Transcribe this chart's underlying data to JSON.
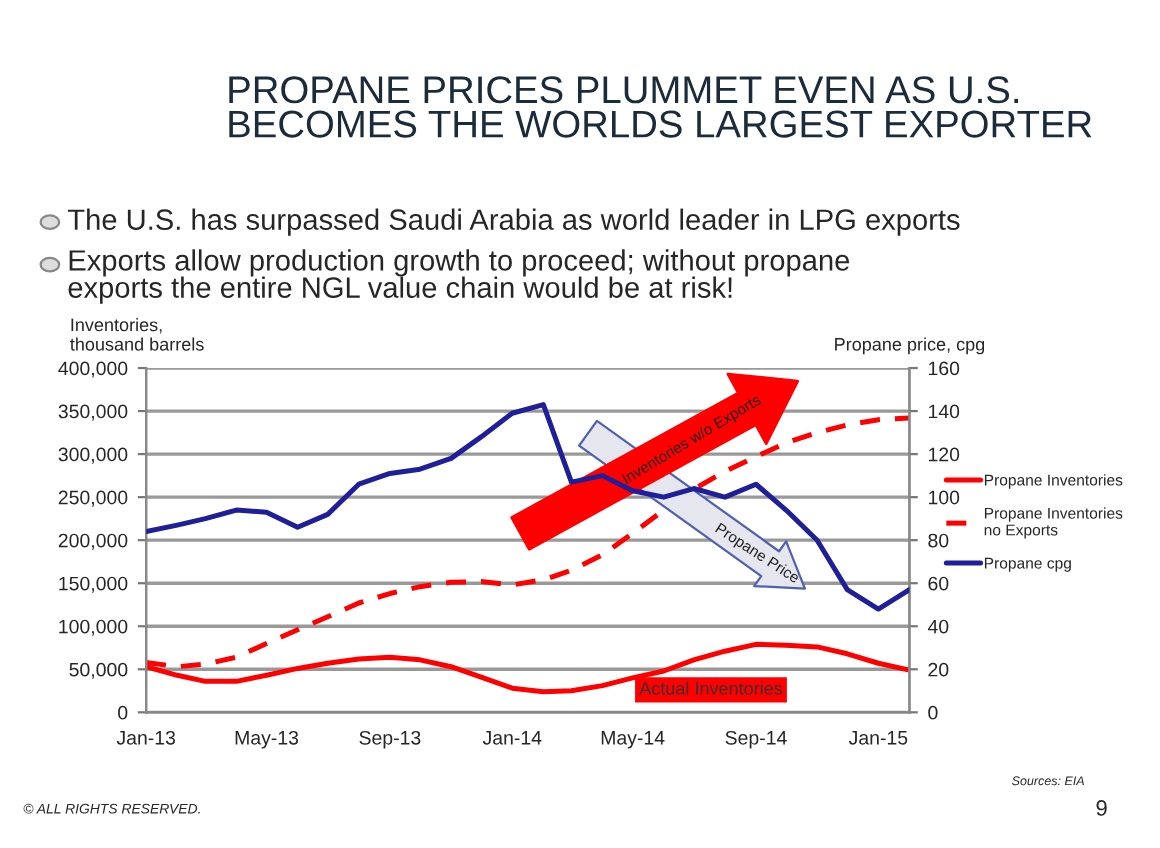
{
  "chart_data": {
    "type": "line",
    "title": "PROPANE PRICES PLUMMET EVEN AS U.S.\nBECOMES THE WORLDS LARGEST EXPORTER",
    "ylabel": "Inventories,\nthousand barrels",
    "y2label": "Propane price, cpg",
    "x": [
      "2013-01",
      "2013-02",
      "2013-03",
      "2013-04",
      "2013-05",
      "2013-06",
      "2013-07",
      "2013-08",
      "2013-09",
      "2013-10",
      "2013-11",
      "2013-12",
      "2014-01",
      "2014-02",
      "2014-03",
      "2014-04",
      "2014-05",
      "2014-06",
      "2014-07",
      "2014-08",
      "2014-09",
      "2014-10",
      "2014-11",
      "2014-12",
      "2015-01",
      "2015-02"
    ],
    "series": [
      {
        "name": "Propane Inventories",
        "color": "#ff0000",
        "line_style": "solid",
        "values": [
          53000,
          43000,
          36000,
          36000,
          43000,
          51000,
          57000,
          62000,
          64000,
          61000,
          53000,
          41000,
          28000,
          24000,
          25000,
          31000,
          40000,
          48000,
          61000,
          71000,
          79000,
          78000,
          76000,
          68000,
          57000,
          49000
        ]
      },
      {
        "name": "Propane Inventories\nno Exports",
        "color": "#ff0000",
        "line_style": "dashed",
        "values": [
          58000,
          53000,
          56000,
          64000,
          80000,
          96000,
          111000,
          127000,
          138000,
          146000,
          151000,
          152000,
          148000,
          154000,
          165000,
          183000,
          208000,
          235000,
          259000,
          280000,
          297000,
          313000,
          325000,
          334000,
          340000,
          342000
        ]
      },
      {
        "name": "Propane cpg",
        "color": "#1f1f9a",
        "line_style": "solid",
        "axis": "y2",
        "values": [
          84,
          87,
          90,
          94,
          93,
          86,
          92,
          106,
          111,
          113,
          118,
          128,
          139,
          143,
          107,
          110,
          103,
          100,
          104,
          100,
          106,
          94,
          80,
          57,
          48,
          57
        ]
      }
    ],
    "xlim": [
      "2013-01",
      "2015-02"
    ],
    "xticks": [
      {
        "value": "2013-01",
        "label": "Jan-13"
      },
      {
        "value": "2013-05",
        "label": "May-13"
      },
      {
        "value": "2013-09",
        "label": "Sep-13"
      },
      {
        "value": "2014-01",
        "label": "Jan-14"
      },
      {
        "value": "2014-05",
        "label": "May-14"
      },
      {
        "value": "2014-09",
        "label": "Sep-14"
      },
      {
        "value": "2015-01",
        "label": "Jan-15"
      }
    ],
    "ylim": [
      0,
      400000
    ],
    "yticks": [
      0,
      {
        "value": 50000,
        "label": "50,000"
      },
      {
        "value": 100000,
        "label": "100,000"
      },
      {
        "value": 150000,
        "label": "150,000"
      },
      {
        "value": 200000,
        "label": "200,000"
      },
      {
        "value": 250000,
        "label": "250,000"
      },
      {
        "value": 300000,
        "label": "300,000"
      },
      {
        "value": 350000,
        "label": "350,000"
      },
      {
        "value": 400000,
        "label": "400,000"
      }
    ],
    "y2lim": [
      0,
      160
    ],
    "y2ticks": [
      0,
      20,
      40,
      60,
      80,
      100,
      120,
      140,
      160
    ],
    "grid": "y",
    "legend": "right",
    "marker": "none",
    "annotations": [
      "The U.S. has surpassed Saudi Arabia as world leader in LPG exports",
      "Exports allow production growth to proceed; without propane\nexports the entire NGL value chain would be at risk!",
      "Inventories w/o Exports",
      "Propane Price",
      "Actual Inventories",
      "Sources: EIA",
      "© ALL RIGHTS RESERVED.",
      "9"
    ]
  }
}
